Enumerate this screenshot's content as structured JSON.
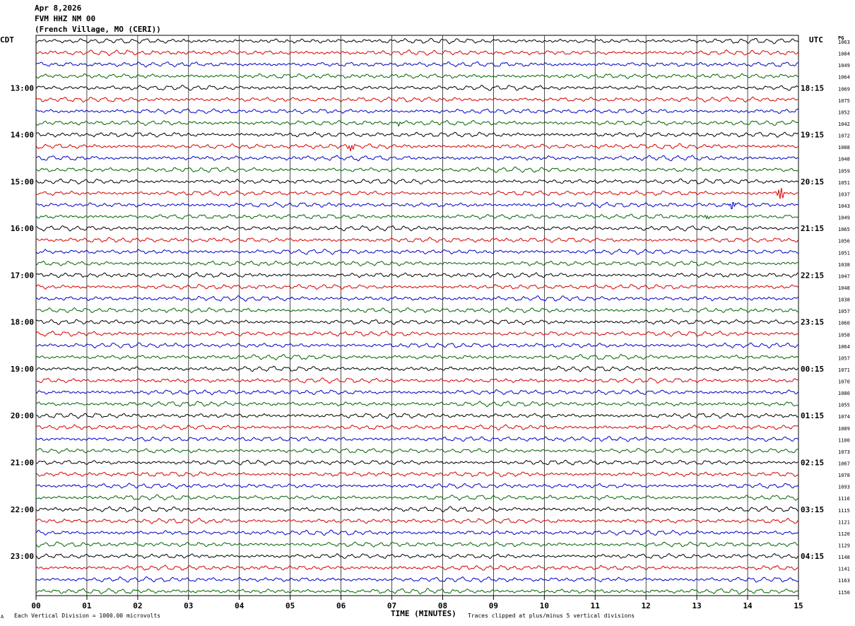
{
  "header": {
    "date": "Apr 8,2026",
    "station": "FVM HHZ NM 00",
    "location": "(French Village, MO (CERI))"
  },
  "timezones": {
    "left": "CDT",
    "right": "UTC"
  },
  "pg_label": "PG",
  "footer": {
    "mark": "A",
    "scale_note": "Each Vertical Division = 1000.00 microvolts",
    "clip_note": "Traces clipped at plus/minus 5 vertical divisions"
  },
  "colors": {
    "cycle": [
      "#000000",
      "#d40000",
      "#0000c8",
      "#006400"
    ],
    "grid": "#000000"
  },
  "chart_data": {
    "type": "line",
    "title": "",
    "xlabel": "TIME (MINUTES)",
    "xlim": [
      0,
      15
    ],
    "x_ticks": [
      "00",
      "01",
      "02",
      "03",
      "04",
      "05",
      "06",
      "07",
      "08",
      "09",
      "10",
      "11",
      "12",
      "13",
      "14",
      "15"
    ],
    "rows_per_hour": 4,
    "row_minutes": 15,
    "left_hour_labels": [
      "13:00",
      "14:00",
      "15:00",
      "16:00",
      "17:00",
      "18:00",
      "19:00",
      "20:00",
      "21:00",
      "22:00",
      "23:00"
    ],
    "right_hour_labels": [
      "18:15",
      "19:15",
      "20:15",
      "21:15",
      "22:15",
      "23:15",
      "00:15",
      "01:15",
      "02:15",
      "03:15",
      "04:15"
    ],
    "row_values": [
      1063,
      1084,
      1049,
      1064,
      1069,
      1075,
      1052,
      1042,
      1072,
      1088,
      1048,
      1059,
      1051,
      1037,
      1043,
      1049,
      1065,
      1056,
      1051,
      1038,
      1047,
      1048,
      1038,
      1057,
      1060,
      1058,
      1064,
      1057,
      1071,
      1070,
      1080,
      1055,
      1074,
      1089,
      1100,
      1073,
      1067,
      1078,
      1093,
      1116,
      1115,
      1121,
      1120,
      1129,
      1148,
      1141,
      1163,
      1150
    ],
    "events": [
      {
        "row": 9,
        "minute": 6.2,
        "amplitude": 0.55
      },
      {
        "row": 13,
        "minute": 14.65,
        "amplitude": 1.0
      },
      {
        "row": 14,
        "minute": 13.7,
        "amplitude": 0.6
      },
      {
        "row": 15,
        "minute": 13.2,
        "amplitude": 0.3
      },
      {
        "row": 7,
        "minute": 7.15,
        "amplitude": 0.3
      }
    ]
  }
}
